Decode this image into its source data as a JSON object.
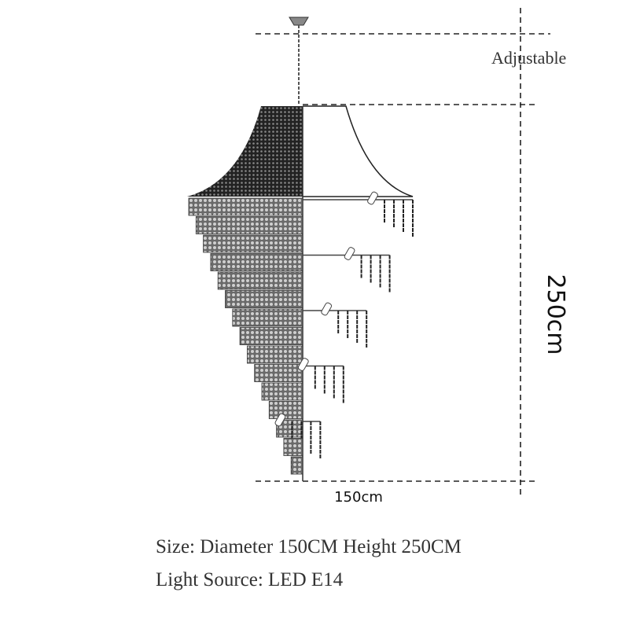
{
  "labels": {
    "adjustable": "Adjustable",
    "height": "250cm",
    "diameter": "150cm"
  },
  "specs": [
    "Size: Diameter 150CM Height 250CM",
    "Light Source: LED E14"
  ]
}
